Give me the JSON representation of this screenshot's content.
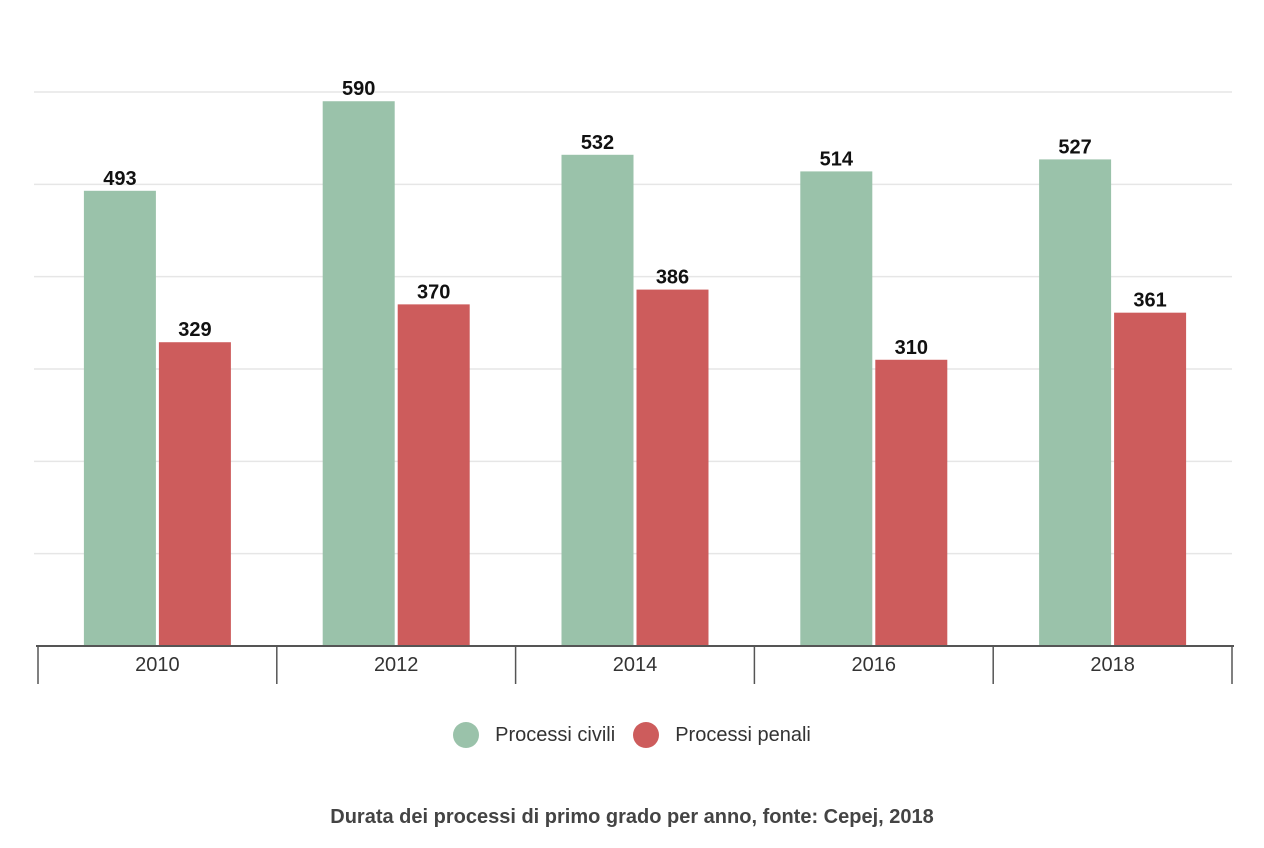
{
  "chart_data": {
    "type": "bar",
    "categories": [
      "2010",
      "2012",
      "2014",
      "2016",
      "2018"
    ],
    "series": [
      {
        "name": "Processi civili",
        "values": [
          493,
          590,
          532,
          514,
          527
        ],
        "color": "#9ac2aa"
      },
      {
        "name": "Processi penali",
        "values": [
          329,
          370,
          386,
          310,
          361
        ],
        "color": "#cd5c5c"
      }
    ],
    "ylim": [
      0,
      600
    ],
    "grid": true,
    "data_labels": true,
    "legend_position": "bottom-center",
    "title": "",
    "xlabel": "",
    "ylabel": "",
    "caption": "Durata dei processi di primo grado per anno, fonte: Cepej, 2018"
  }
}
